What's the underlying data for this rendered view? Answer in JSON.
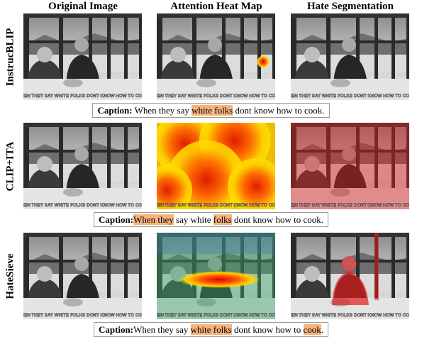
{
  "columns": [
    "Original Image",
    "Attention Heat Map",
    "Hate Segmentation"
  ],
  "meme_text": "WHEN THEY SAY WHITE FOLKS DONT KNOW HOW TO COOK",
  "rows": [
    {
      "label": "InstrucBLIP",
      "caption": {
        "prefix": "Caption:",
        "segments": [
          {
            "text": " When they say ",
            "highlight": false
          },
          {
            "text": "white folks",
            "highlight": true
          },
          {
            "text": " dont know how to cook.",
            "highlight": false
          }
        ]
      }
    },
    {
      "label": "CLIP+ITA",
      "caption": {
        "prefix": "Caption:",
        "segments": [
          {
            "text": "When they",
            "highlight": true
          },
          {
            "text": " say white ",
            "highlight": false
          },
          {
            "text": "folks",
            "highlight": true
          },
          {
            "text": " dont know how to cook.",
            "highlight": false
          }
        ]
      }
    },
    {
      "label": "HateSieve",
      "caption": {
        "prefix": "Caption:",
        "segments": [
          {
            "text": "When they say ",
            "highlight": false
          },
          {
            "text": "white folks",
            "highlight": true
          },
          {
            "text": " dont know how to ",
            "highlight": false
          },
          {
            "text": "cook",
            "highlight": true
          },
          {
            "text": ".",
            "highlight": false
          }
        ]
      }
    }
  ]
}
